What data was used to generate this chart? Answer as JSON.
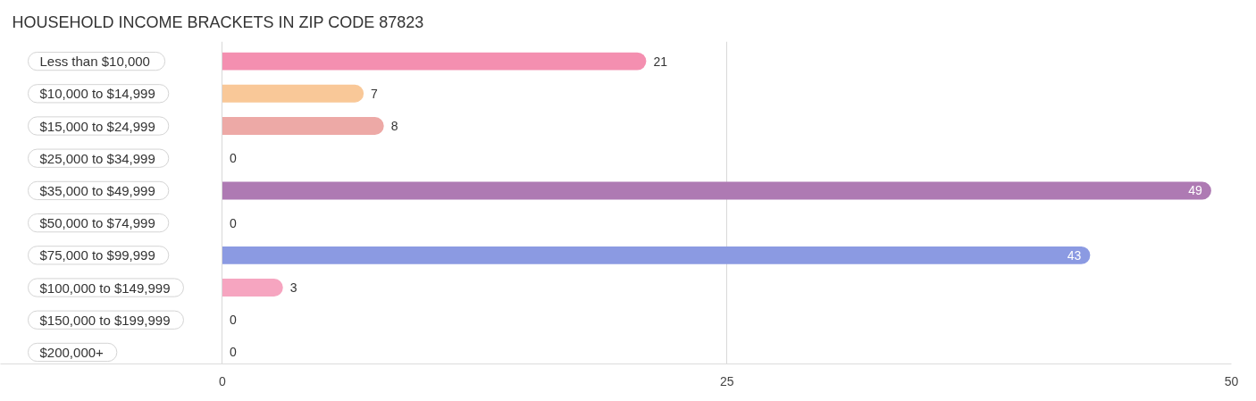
{
  "chart_data": {
    "type": "bar",
    "orientation": "horizontal",
    "title": "HOUSEHOLD INCOME BRACKETS IN ZIP CODE 87823",
    "categories": [
      "Less than $10,000",
      "$10,000 to $14,999",
      "$15,000 to $24,999",
      "$25,000 to $34,999",
      "$35,000 to $49,999",
      "$50,000 to $74,999",
      "$75,000 to $99,999",
      "$100,000 to $149,999",
      "$150,000 to $199,999",
      "$200,000+"
    ],
    "values": [
      21,
      7,
      8,
      0,
      49,
      0,
      43,
      3,
      0,
      0
    ],
    "colors": [
      "#f48fb0",
      "#f9c898",
      "#eda9a6",
      "#a8c8ed",
      "#ae7ab3",
      "#7dcfd0",
      "#8b9ae2",
      "#f6a5c0",
      "#f9ca9b",
      "#f0b0b0"
    ],
    "xlim": [
      -11,
      50
    ],
    "xticks": [
      0,
      25,
      50
    ],
    "grid": "x",
    "data_labels": true
  }
}
